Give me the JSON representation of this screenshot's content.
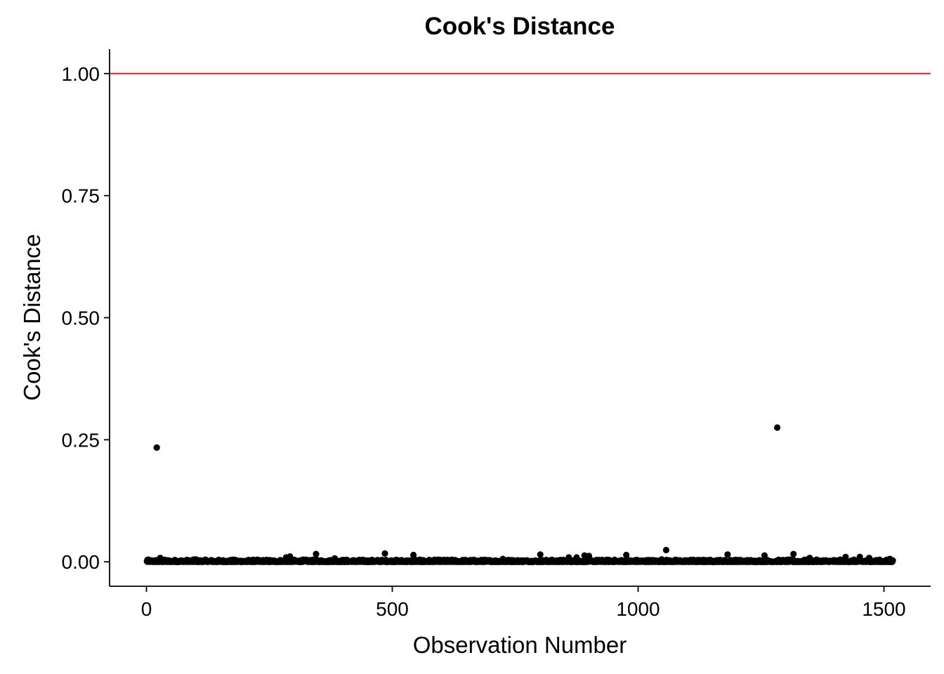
{
  "chart_data": {
    "type": "scatter",
    "title": "Cook's Distance",
    "xlabel": "Observation Number",
    "ylabel": "Cook's Distance",
    "xlim": [
      -75,
      1595
    ],
    "ylim": [
      -0.05,
      1.05
    ],
    "x_ticks": [
      0,
      500,
      1000,
      1500
    ],
    "x_tick_labels": [
      "0",
      "500",
      "1000",
      "1500"
    ],
    "y_ticks": [
      0,
      0.25,
      0.5,
      0.75,
      1.0
    ],
    "y_tick_labels": [
      "0.00",
      "0.25",
      "0.50",
      "0.75",
      "1.00"
    ],
    "reference_line": {
      "y": 1.0,
      "color": "#e41a1c"
    },
    "point_color": "#000000",
    "n_observations": 1518,
    "points": [
      {
        "x": 21,
        "y": 0.234
      },
      {
        "x": 1283,
        "y": 0.275
      },
      {
        "x": 1057,
        "y": 0.024
      },
      {
        "x": 485,
        "y": 0.017
      },
      {
        "x": 345,
        "y": 0.016
      },
      {
        "x": 1316,
        "y": 0.016
      },
      {
        "x": 801,
        "y": 0.015
      },
      {
        "x": 1182,
        "y": 0.015
      },
      {
        "x": 543,
        "y": 0.014
      },
      {
        "x": 976,
        "y": 0.014
      },
      {
        "x": 891,
        "y": 0.013
      },
      {
        "x": 1257,
        "y": 0.013
      },
      {
        "x": 900,
        "y": 0.012
      },
      {
        "x": 292,
        "y": 0.011
      },
      {
        "x": 1422,
        "y": 0.01
      },
      {
        "x": 1451,
        "y": 0.01
      },
      {
        "x": 284,
        "y": 0.009
      },
      {
        "x": 859,
        "y": 0.009
      },
      {
        "x": 875,
        "y": 0.009
      },
      {
        "x": 1349,
        "y": 0.008
      },
      {
        "x": 1470,
        "y": 0.008
      },
      {
        "x": 28,
        "y": 0.008
      },
      {
        "x": 383,
        "y": 0.007
      },
      {
        "x": 1512,
        "y": 0.006
      },
      {
        "x": 725,
        "y": 0.006
      },
      {
        "x": 1048,
        "y": 0.005
      },
      {
        "x": 100,
        "y": 0.005
      },
      {
        "x": 2,
        "y": 0.004
      }
    ]
  }
}
